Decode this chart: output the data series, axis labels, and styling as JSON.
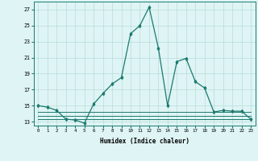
{
  "x": [
    0,
    1,
    2,
    3,
    4,
    5,
    6,
    7,
    8,
    9,
    10,
    11,
    12,
    13,
    14,
    15,
    16,
    17,
    18,
    19,
    20,
    21,
    22,
    23
  ],
  "y_main": [
    15.0,
    14.8,
    14.4,
    13.3,
    13.2,
    12.8,
    15.2,
    16.5,
    17.7,
    18.5,
    24.0,
    25.0,
    27.3,
    22.2,
    15.0,
    20.5,
    20.9,
    18.0,
    17.2,
    14.2,
    14.4,
    14.3,
    14.3,
    13.3
  ],
  "y_flat1": [
    14.2,
    14.2,
    14.2,
    14.2,
    14.2,
    14.2,
    14.2,
    14.2,
    14.2,
    14.2,
    14.2,
    14.2,
    14.2,
    14.2,
    14.2,
    14.2,
    14.2,
    14.2,
    14.2,
    14.2,
    14.2,
    14.2,
    14.2,
    14.2
  ],
  "y_flat2": [
    13.7,
    13.7,
    13.7,
    13.7,
    13.7,
    13.7,
    13.7,
    13.7,
    13.7,
    13.7,
    13.7,
    13.7,
    13.7,
    13.7,
    13.7,
    13.7,
    13.7,
    13.7,
    13.7,
    13.7,
    13.7,
    13.7,
    13.7,
    13.7
  ],
  "y_flat3": [
    13.3,
    13.3,
    13.3,
    13.3,
    13.3,
    13.3,
    13.3,
    13.3,
    13.3,
    13.3,
    13.3,
    13.3,
    13.3,
    13.3,
    13.3,
    13.3,
    13.3,
    13.3,
    13.3,
    13.3,
    13.3,
    13.3,
    13.3,
    13.3
  ],
  "line_color": "#1a7a6e",
  "bg_color": "#dff4f4",
  "grid_color": "#b8dcdc",
  "xlabel": "Humidex (Indice chaleur)",
  "ylim": [
    12.5,
    28.0
  ],
  "xlim": [
    -0.5,
    23.5
  ],
  "yticks": [
    13,
    15,
    17,
    19,
    21,
    23,
    25,
    27
  ],
  "xticks": [
    0,
    1,
    2,
    3,
    4,
    5,
    6,
    7,
    8,
    9,
    10,
    11,
    12,
    13,
    14,
    15,
    16,
    17,
    18,
    19,
    20,
    21,
    22,
    23
  ]
}
